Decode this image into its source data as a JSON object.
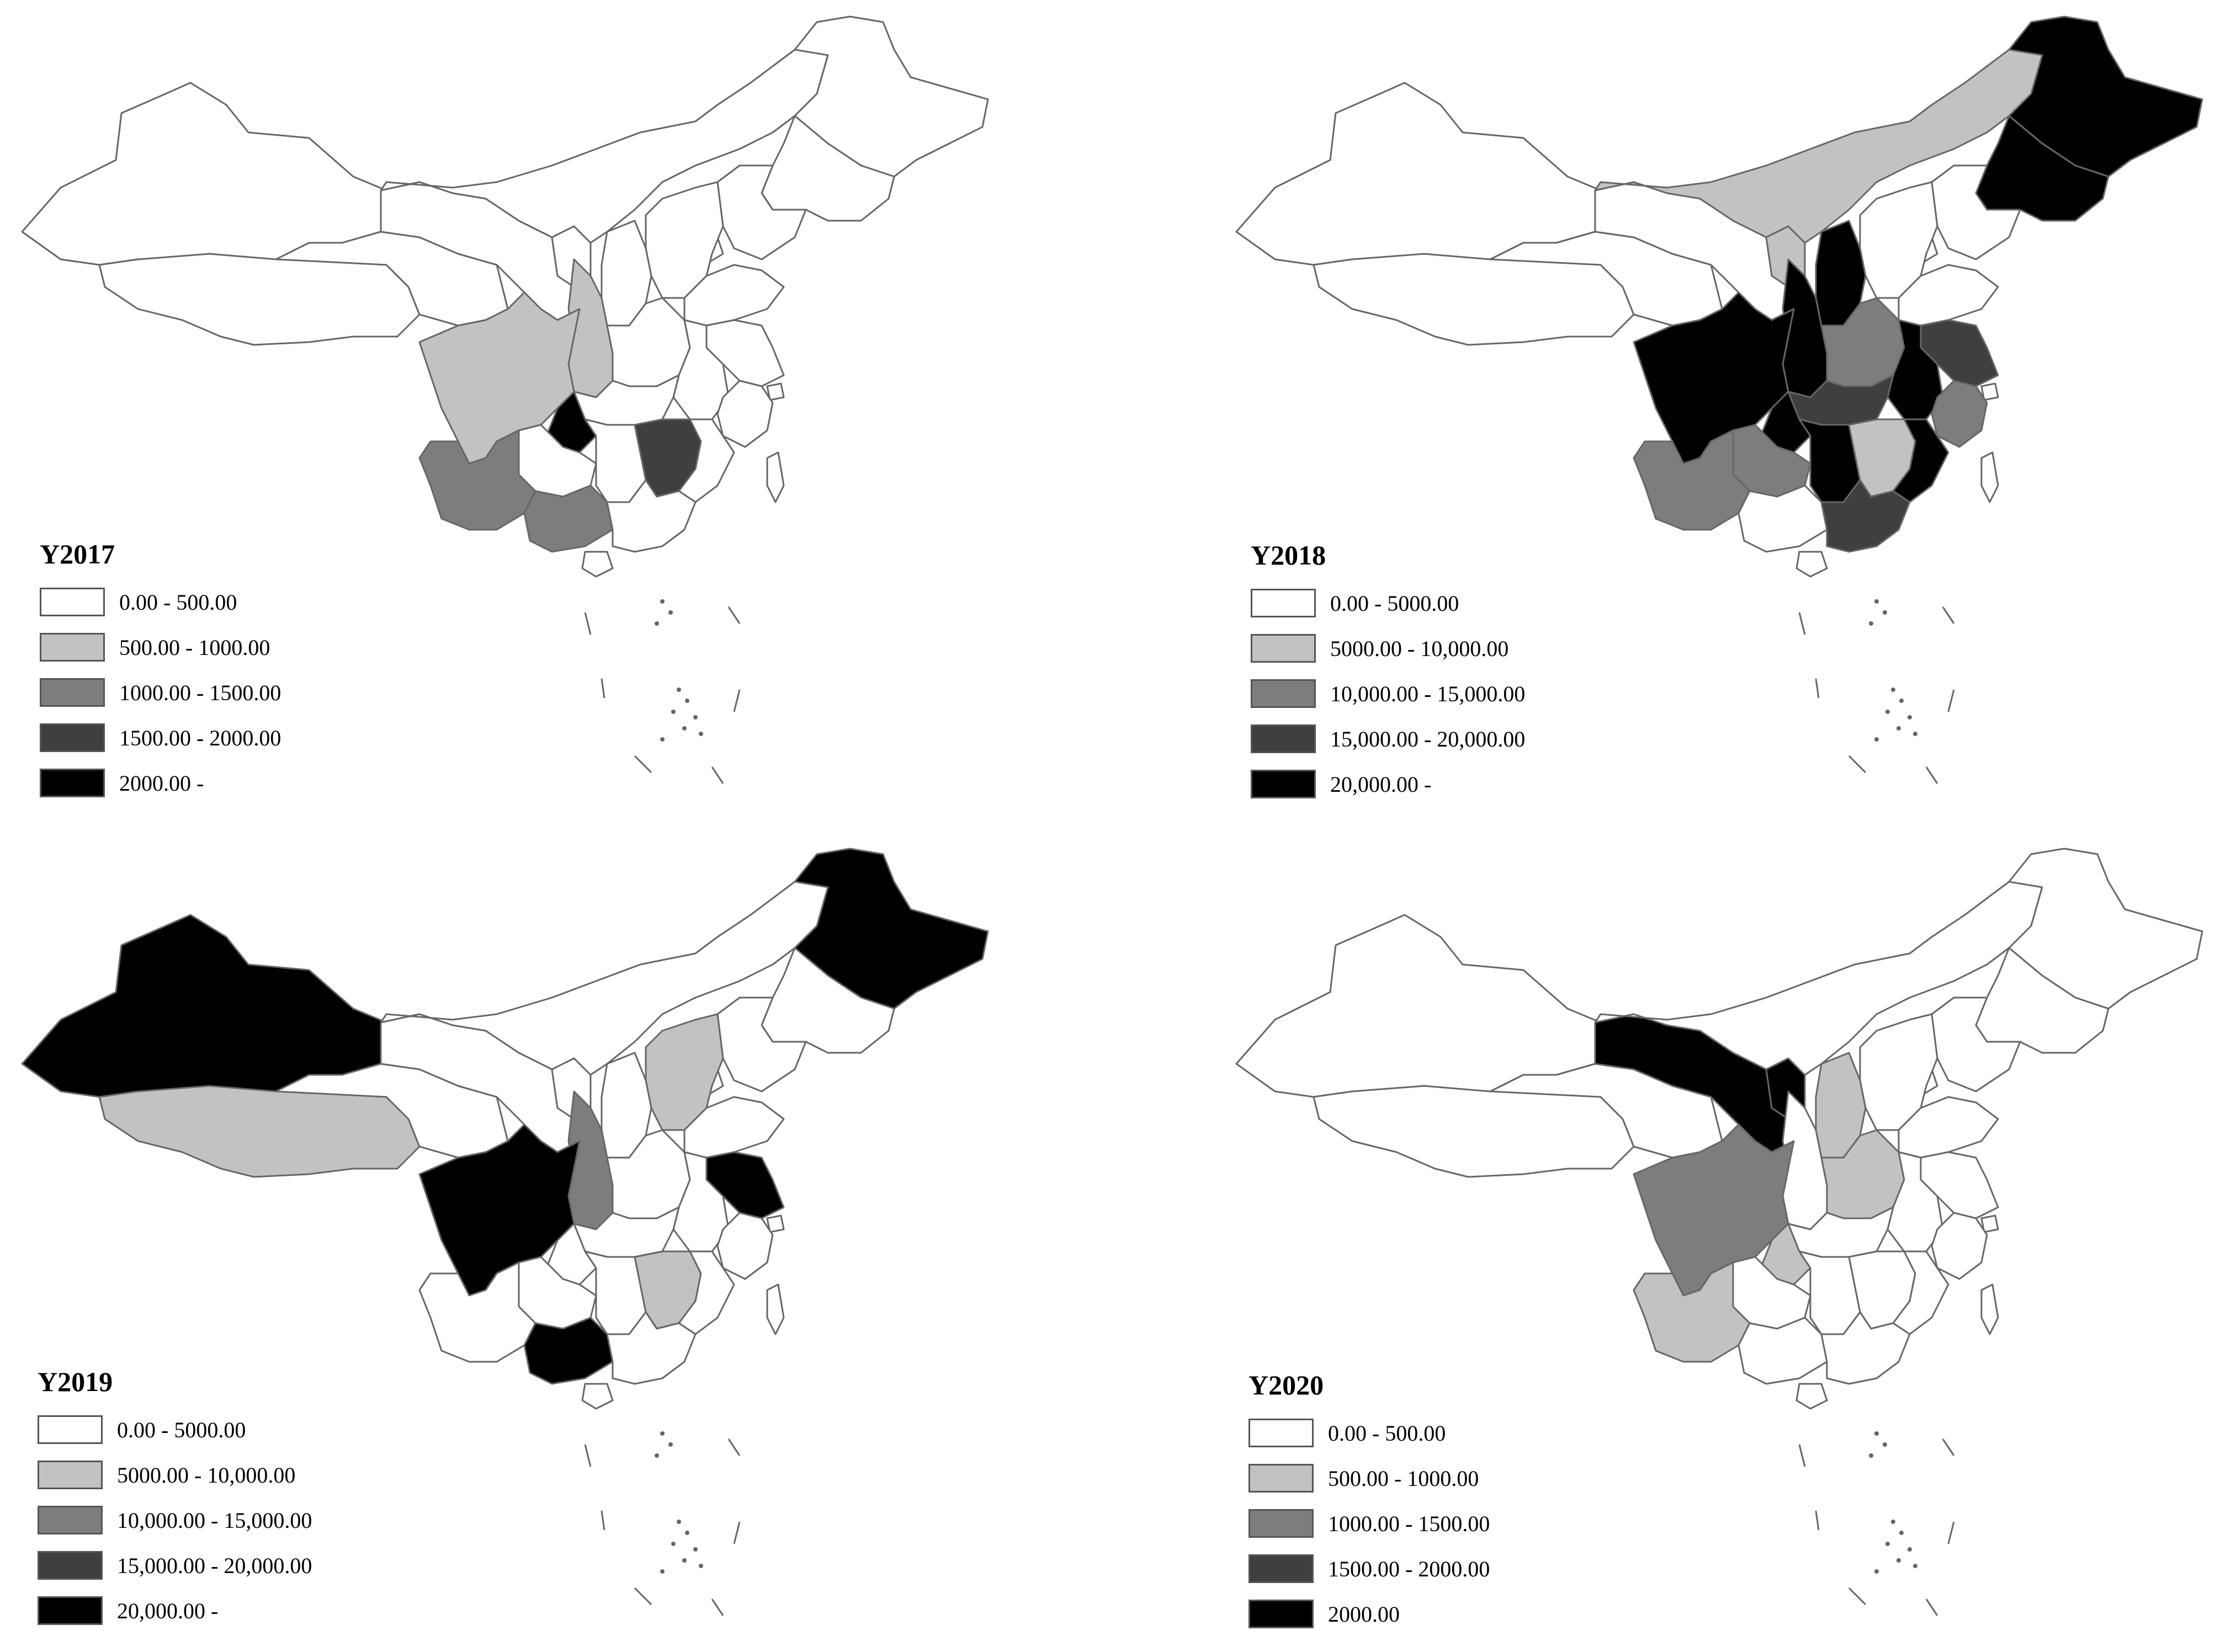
{
  "panels": [
    {
      "title": "Y2017",
      "legend": [
        "0.00 - 500.00",
        "500.00 - 1000.00",
        "1000.00 - 1500.00",
        "1500.00 - 2000.00",
        "2000.00 -"
      ],
      "regions": {
        "sichuan": 1,
        "shaanxi": 1,
        "chongqing": 4,
        "jiangxi": 3,
        "yunnan": 2,
        "guangxi": 2
      }
    },
    {
      "title": "Y2018",
      "legend": [
        "0.00 - 5000.00",
        "5000.00 - 10,000.00",
        "10,000.00 - 15,000.00",
        "15,000.00 - 20,000.00",
        "20,000.00 -"
      ],
      "regions": {
        "heilongjiang": 4,
        "jilin": 4,
        "inner_mongolia": 1,
        "ningxia": 1,
        "shaanxi": 4,
        "shanxi": 4,
        "sichuan": 4,
        "chongqing": 4,
        "henan": 2,
        "hubei": 3,
        "hunan": 4,
        "anhui": 4,
        "jiangsu": 3,
        "zhejiang": 2,
        "jiangxi": 1,
        "fujian": 4,
        "guangdong": 3,
        "yunnan": 2,
        "guizhou": 2,
        "beijing": 2
      }
    },
    {
      "title": "Y2019",
      "legend": [
        "0.00 - 5000.00",
        "5000.00 - 10,000.00",
        "10,000.00 - 15,000.00",
        "15,000.00 - 20,000.00",
        "20,000.00 -"
      ],
      "regions": {
        "xinjiang": 4,
        "heilongjiang": 4,
        "tibet": 1,
        "sichuan": 4,
        "guangxi": 4,
        "jiangsu": 4,
        "shaanxi": 2,
        "hebei": 1,
        "jiangxi": 1
      }
    },
    {
      "title": "Y2020",
      "legend": [
        "0.00 - 500.00",
        "500.00 - 1000.00",
        "1000.00 - 1500.00",
        "1500.00 - 2000.00",
        "2000.00"
      ],
      "regions": {
        "gansu": 4,
        "ningxia": 4,
        "sichuan": 2,
        "yunnan": 1,
        "shanxi": 1,
        "henan": 1,
        "chongqing": 1,
        "beijing": 1
      }
    }
  ],
  "colors": {
    "class_0": "#ffffff",
    "class_1": "#c2c2c2",
    "class_2": "#7d7d7d",
    "class_3": "#3f3f3f",
    "class_4": "#000000",
    "outline": "#666666"
  }
}
